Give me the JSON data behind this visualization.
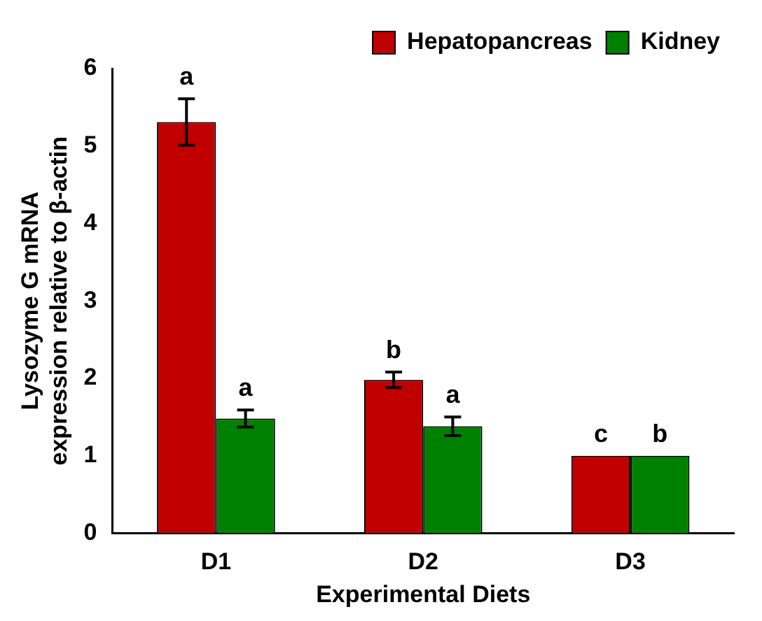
{
  "chart_data": {
    "type": "bar",
    "xlabel": "Experimental Diets",
    "ylabel": "Lysozyme G mRNA expression relative to β-actin",
    "categories": [
      "D1",
      "D2",
      "D3"
    ],
    "series": [
      {
        "name": "Hepatopancreas",
        "color": "#c00000",
        "values": [
          5.31,
          1.98,
          1
        ],
        "errors": [
          0.3,
          0.1,
          null
        ],
        "value_labels": [
          "a",
          "b",
          "c"
        ]
      },
      {
        "name": "Kidney",
        "color": "#008000",
        "values": [
          1.48,
          1.38,
          1
        ],
        "errors": [
          0.11,
          0.12,
          null
        ],
        "value_labels": [
          "a",
          "a",
          "b"
        ]
      }
    ],
    "ylim": [
      0,
      6
    ],
    "yticks": [
      0,
      1,
      2,
      3,
      4,
      5,
      6
    ],
    "grid": false,
    "legend": "top right"
  }
}
